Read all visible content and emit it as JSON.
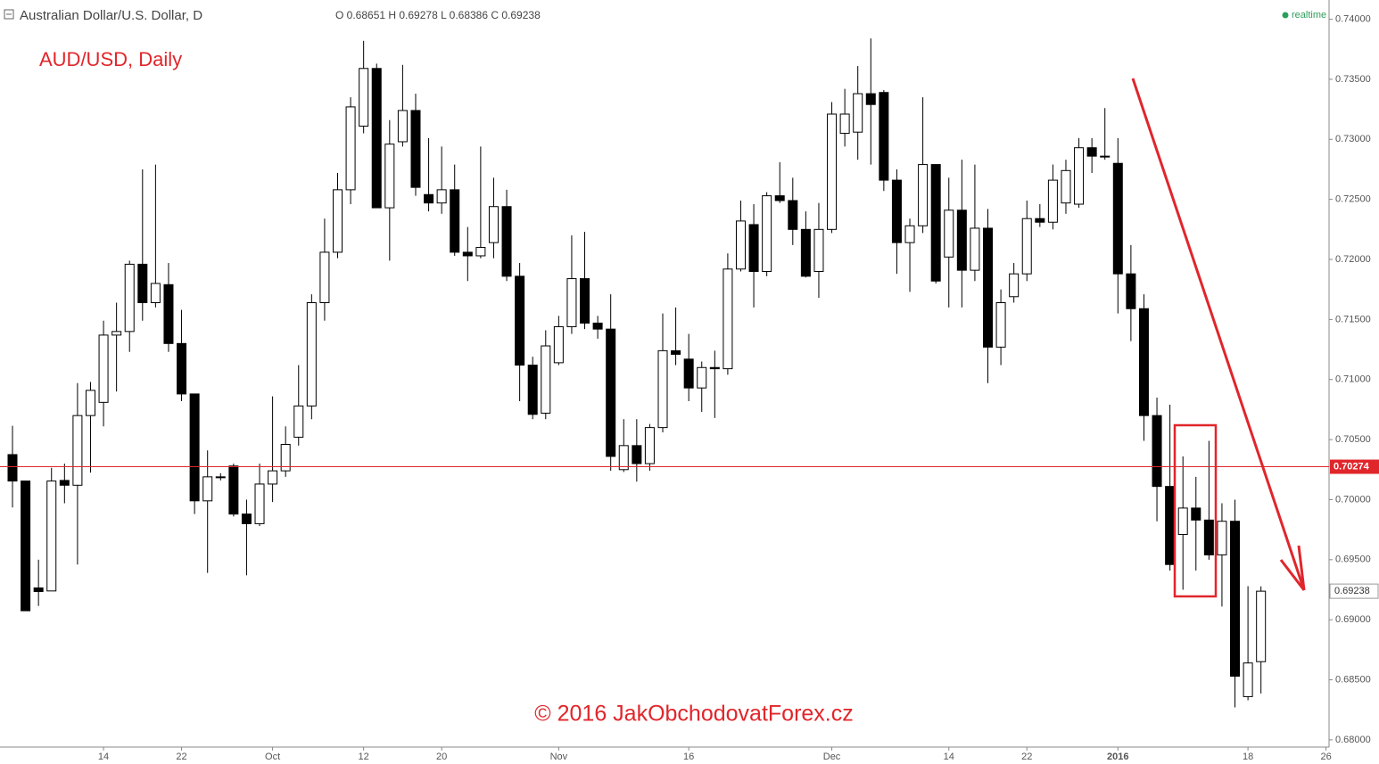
{
  "chart_data": {
    "type": "candlestick",
    "header": "Australian Dollar/U.S. Dollar, D",
    "ohlc_text": "O 0.68651 H 0.69278 L 0.68386 C 0.69238",
    "status": "realtime",
    "title": "AUD/USD, Daily",
    "watermark": "© 2016 JakObchodovatForex.cz",
    "categories": [
      null,
      null,
      null,
      null,
      null,
      null,
      null,
      "14",
      null,
      null,
      null,
      null,
      null,
      "22",
      null,
      null,
      null,
      null,
      null,
      null,
      "Oct",
      null,
      null,
      null,
      null,
      null,
      null,
      "12",
      null,
      null,
      null,
      null,
      null,
      "20",
      null,
      null,
      null,
      null,
      null,
      null,
      null,
      null,
      "Nov",
      null,
      null,
      null,
      null,
      null,
      null,
      null,
      null,
      null,
      "16",
      null,
      null,
      null,
      null,
      null,
      null,
      null,
      null,
      null,
      null,
      "Dec",
      null,
      null,
      null,
      null,
      null,
      null,
      null,
      null,
      "14",
      null,
      null,
      null,
      null,
      null,
      "22",
      null,
      null,
      null,
      null,
      null,
      null,
      "2016",
      null,
      null,
      null,
      null,
      null,
      null,
      null,
      null,
      null,
      "18",
      null,
      null,
      null,
      null,
      null,
      "26"
    ],
    "open": [
      0.70375,
      0.70155,
      0.69265,
      0.6924,
      0.7016,
      0.7012,
      0.707,
      0.7081,
      0.7137,
      0.714,
      0.7196,
      0.7164,
      0.7179,
      0.713,
      0.7088,
      0.6999,
      0.7019,
      0.7028,
      0.6988,
      0.698,
      0.7013,
      0.7024,
      0.7052,
      0.7078,
      0.7164,
      0.7206,
      0.7258,
      0.7311,
      0.7359,
      0.7243,
      0.7298,
      0.7324,
      0.7254,
      0.7247,
      0.7258,
      0.7206,
      0.7203,
      0.7214,
      0.7244,
      0.7186,
      0.7112,
      0.7072,
      0.7114,
      0.7144,
      0.7184,
      0.7147,
      0.7142,
      0.7025,
      0.7045,
      0.703,
      0.706,
      0.7124,
      0.7117,
      0.7093,
      0.711,
      0.7109,
      0.7192,
      0.7229,
      0.719,
      0.7253,
      0.7249,
      0.7225,
      0.719,
      0.7225,
      0.7305,
      0.7306,
      0.7338,
      0.7339,
      0.7266,
      0.7214,
      0.7228,
      0.7279,
      0.7202,
      0.7241,
      0.7191,
      0.7226,
      0.7127,
      0.7169,
      0.7188,
      0.7234,
      0.7231,
      0.7247,
      0.7246,
      0.7293,
      0.7286,
      0.728,
      0.7188,
      0.7159,
      0.707,
      0.7011,
      0.6971,
      0.6993,
      0.6983,
      0.6954,
      0.6982,
      0.6836,
      0.68651,
      null,
      null,
      null,
      null,
      null
    ],
    "high": [
      0.70615,
      0.70155,
      0.695,
      0.70265,
      0.703,
      0.7097,
      0.7098,
      0.7149,
      0.7164,
      0.7199,
      0.7275,
      0.7279,
      0.7197,
      0.7158,
      0.7088,
      0.7041,
      0.7022,
      0.703,
      0.7,
      0.703,
      0.7086,
      0.7061,
      0.7112,
      0.7171,
      0.7234,
      0.7272,
      0.7335,
      0.7382,
      0.7363,
      0.7316,
      0.7362,
      0.7338,
      0.7301,
      0.7294,
      0.7279,
      0.7227,
      0.7294,
      0.7268,
      0.7258,
      0.7197,
      0.7119,
      0.7141,
      0.7153,
      0.722,
      0.7223,
      0.7153,
      0.7171,
      0.7067,
      0.7067,
      0.7063,
      0.7155,
      0.716,
      0.7138,
      0.7115,
      0.7124,
      0.7205,
      0.7249,
      0.7246,
      0.7256,
      0.7281,
      0.7268,
      0.724,
      0.7247,
      0.7331,
      0.7342,
      0.7361,
      0.7384,
      0.7341,
      0.7275,
      0.7234,
      0.7335,
      0.7279,
      0.7268,
      0.7283,
      0.7279,
      0.7242,
      0.7175,
      0.7197,
      0.7249,
      0.7246,
      0.7279,
      0.7283,
      0.7301,
      0.7301,
      0.7326,
      0.7301,
      0.7212,
      0.7171,
      0.7085,
      0.7079,
      0.7036,
      0.7019,
      0.7049,
      0.6997,
      0.7,
      0.6928,
      0.69278,
      null,
      null,
      null,
      null,
      null
    ],
    "low": [
      0.69935,
      0.69075,
      0.69115,
      0.6924,
      0.6997,
      0.6946,
      0.70225,
      0.7061,
      0.709,
      0.7123,
      0.7149,
      0.716,
      0.7123,
      0.7082,
      0.6988,
      0.6939,
      0.7016,
      0.6986,
      0.6937,
      0.6978,
      0.6998,
      0.7019,
      0.7045,
      0.7067,
      0.7149,
      0.7201,
      0.7246,
      0.7305,
      0.7243,
      0.7199,
      0.7294,
      0.7253,
      0.724,
      0.7238,
      0.7203,
      0.7182,
      0.7201,
      0.7201,
      0.7182,
      0.7082,
      0.7067,
      0.7067,
      0.7112,
      0.7138,
      0.7142,
      0.7134,
      0.7024,
      0.7023,
      0.7015,
      0.7024,
      0.7056,
      0.7112,
      0.7082,
      0.7073,
      0.7068,
      0.7104,
      0.719,
      0.716,
      0.7186,
      0.7247,
      0.7212,
      0.7185,
      0.7168,
      0.7222,
      0.7294,
      0.7283,
      0.7279,
      0.7257,
      0.7188,
      0.7173,
      0.7222,
      0.718,
      0.716,
      0.716,
      0.7182,
      0.7097,
      0.7112,
      0.7164,
      0.7182,
      0.7227,
      0.7225,
      0.7238,
      0.7243,
      0.7272,
      0.7283,
      0.7155,
      0.7132,
      0.7049,
      0.6982,
      0.6941,
      0.6925,
      0.6941,
      0.695,
      0.6911,
      0.6827,
      0.6833,
      0.68386,
      null,
      null,
      null,
      null,
      null
    ],
    "close": [
      0.70155,
      0.69075,
      0.69235,
      0.70155,
      0.7012,
      0.707,
      0.7091,
      0.7137,
      0.714,
      0.7196,
      0.7164,
      0.718,
      0.713,
      0.7088,
      0.6999,
      0.7019,
      0.7019,
      0.6988,
      0.698,
      0.7013,
      0.7024,
      0.7046,
      0.7078,
      0.7164,
      0.7206,
      0.7258,
      0.7327,
      0.7359,
      0.7243,
      0.7296,
      0.7324,
      0.726,
      0.7247,
      0.7258,
      0.7206,
      0.7203,
      0.721,
      0.7244,
      0.7186,
      0.7112,
      0.7071,
      0.7128,
      0.7144,
      0.7184,
      0.7147,
      0.7142,
      0.7036,
      0.7045,
      0.703,
      0.706,
      0.7124,
      0.7121,
      0.7093,
      0.711,
      0.7109,
      0.7192,
      0.7232,
      0.719,
      0.7253,
      0.7249,
      0.7225,
      0.7186,
      0.7225,
      0.7321,
      0.7321,
      0.7338,
      0.7329,
      0.7266,
      0.7214,
      0.7228,
      0.7279,
      0.7182,
      0.7241,
      0.7191,
      0.7226,
      0.7127,
      0.7164,
      0.7188,
      0.7234,
      0.7231,
      0.7266,
      0.7274,
      0.7293,
      0.7286,
      0.7286,
      0.7188,
      0.7159,
      0.707,
      0.7011,
      0.6946,
      0.6993,
      0.6983,
      0.6954,
      0.6982,
      0.6853,
      0.6864,
      0.69238,
      null,
      null,
      null,
      null,
      null
    ],
    "up_color": "#ffffff",
    "down_color": "#000000",
    "ylim": [
      0.6794,
      0.7416
    ],
    "yticks": [
      {
        "value": 0.68,
        "label": "0.68000"
      },
      {
        "value": 0.685,
        "label": "0.68500"
      },
      {
        "value": 0.69,
        "label": "0.69000"
      },
      {
        "value": 0.695,
        "label": "0.69500"
      },
      {
        "value": 0.7,
        "label": "0.70000"
      },
      {
        "value": 0.705,
        "label": "0.70500"
      },
      {
        "value": 0.71,
        "label": "0.71000"
      },
      {
        "value": 0.715,
        "label": "0.71500"
      },
      {
        "value": 0.72,
        "label": "0.72000"
      },
      {
        "value": 0.725,
        "label": "0.72500"
      },
      {
        "value": 0.73,
        "label": "0.73000"
      },
      {
        "value": 0.735,
        "label": "0.73500"
      },
      {
        "value": 0.74,
        "label": "0.74000"
      }
    ],
    "hline": {
      "value": 0.70274,
      "label": "0.70274",
      "color": "#e0262b"
    },
    "last_price": {
      "value": 0.69238,
      "label": "0.69238"
    }
  }
}
